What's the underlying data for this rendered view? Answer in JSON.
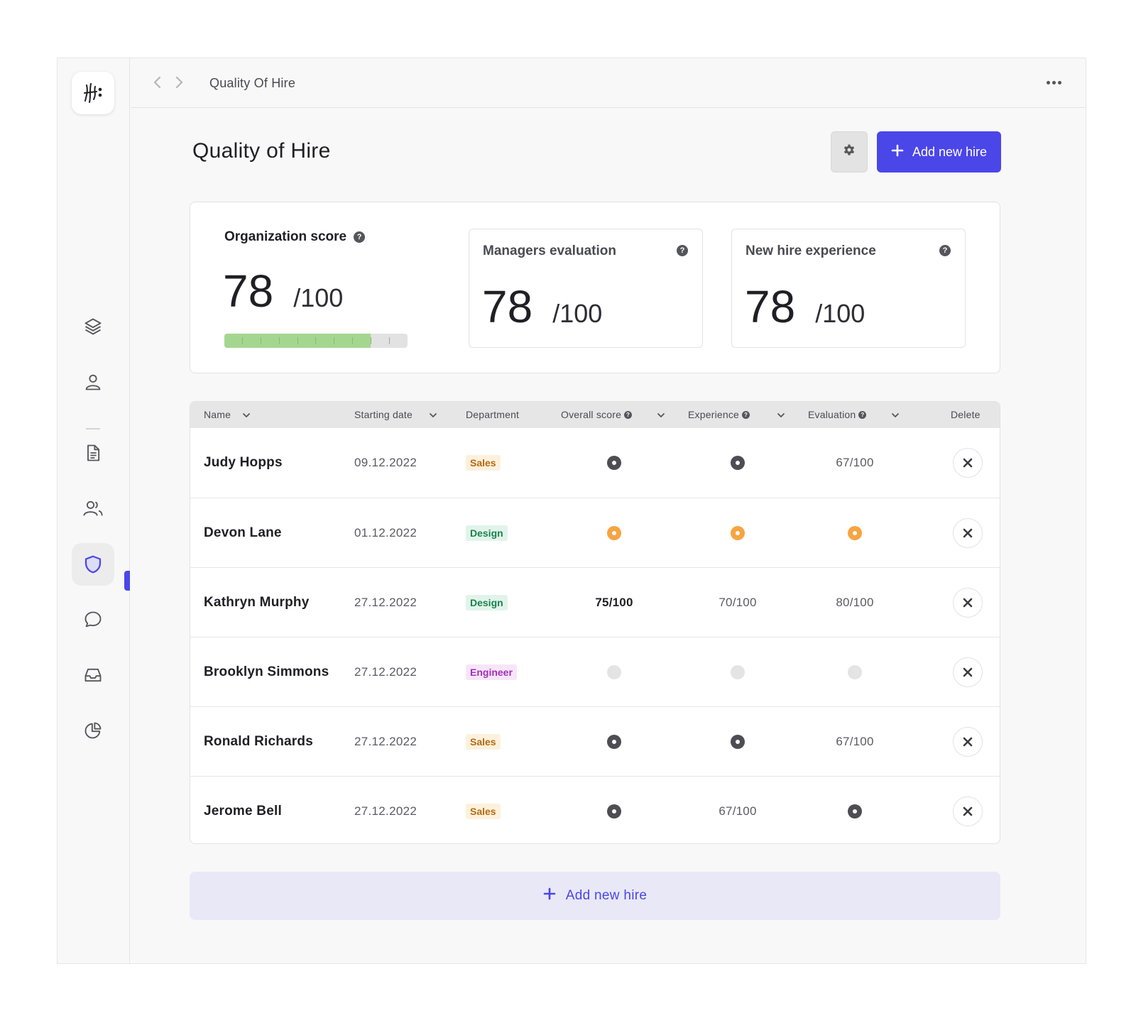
{
  "topbar": {
    "breadcrumb": "Quality Of Hire"
  },
  "page": {
    "title": "Quality of Hire",
    "add_button": "Add new hire"
  },
  "org_score": {
    "label": "Organization score",
    "value": "78",
    "denominator": "/100",
    "progress": 0.8
  },
  "managers_evaluation": {
    "label": "Managers evaluation",
    "value": "78",
    "denominator": "/100"
  },
  "new_hire_experience": {
    "label": "New hire experience",
    "value": "78",
    "denominator": "/100"
  },
  "table": {
    "columns": {
      "name": "Name",
      "starting_date": "Starting date",
      "department": "Department",
      "overall_score": "Overall score",
      "experience": "Experience",
      "evaluation": "Evaluation",
      "delete": "Delete"
    },
    "rows": [
      {
        "name": "Judy Hopps",
        "date": "09.12.2022",
        "department": "Sales",
        "overall": "done",
        "experience": "done",
        "evaluation": "67/100"
      },
      {
        "name": "Devon Lane",
        "date": "01.12.2022",
        "department": "Design",
        "overall": "pending",
        "experience": "pending",
        "evaluation": "pending"
      },
      {
        "name": "Kathryn Murphy",
        "date": "27.12.2022",
        "department": "Design",
        "overall": "75/100",
        "experience": "70/100",
        "evaluation": "80/100"
      },
      {
        "name": "Brooklyn Simmons",
        "date": "27.12.2022",
        "department": "Engineer",
        "overall": "empty",
        "experience": "empty",
        "evaluation": "empty"
      },
      {
        "name": "Ronald Richards",
        "date": "27.12.2022",
        "department": "Sales",
        "overall": "done",
        "experience": "done",
        "evaluation": "67/100"
      },
      {
        "name": "Jerome Bell",
        "date": "27.12.2022",
        "department": "Sales",
        "overall": "done",
        "experience": "67/100",
        "evaluation": "done"
      }
    ]
  },
  "footer": {
    "add_button": "Add new hire"
  },
  "colors": {
    "accent": "#4b46e8",
    "progress": "#a5d690",
    "pending": "#f7a442"
  },
  "icons": [
    "logo-icon",
    "layers-icon",
    "user-icon",
    "document-icon",
    "users-icon",
    "shield-icon",
    "chat-icon",
    "inbox-icon",
    "pie-chart-icon",
    "gear-icon",
    "plus-icon",
    "close-icon",
    "chevron-down-icon",
    "help-icon",
    "more-icon"
  ]
}
